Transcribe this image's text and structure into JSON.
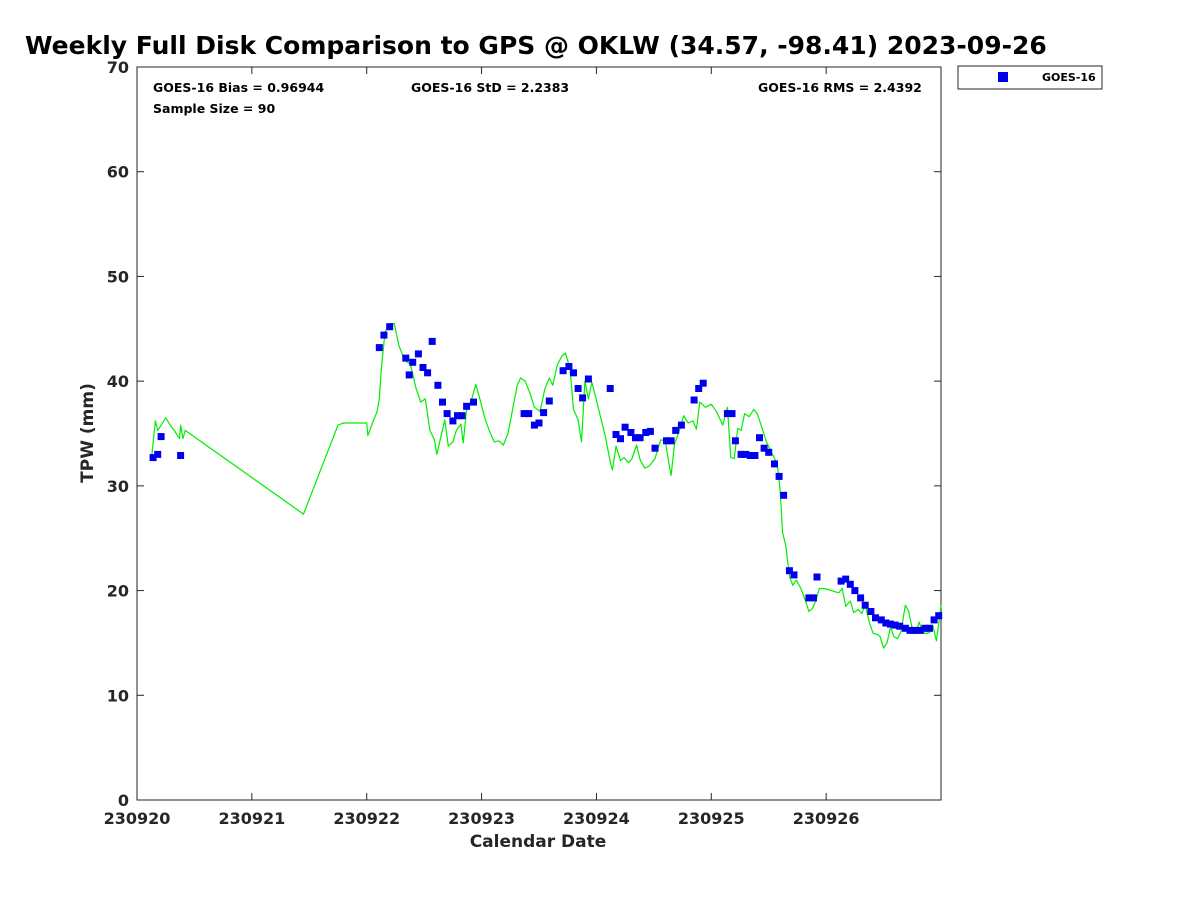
{
  "chart_data": {
    "type": "scatter",
    "title": "Weekly Full Disk Comparison to GPS @ OKLW (34.57, -98.41) 2023-09-26",
    "xlabel": "Calendar Date",
    "ylabel": "TPW (mm)",
    "xlim": [
      0,
      7
    ],
    "ylim": [
      0,
      70
    ],
    "x_ticks": [
      0,
      1,
      2,
      3,
      4,
      5,
      6
    ],
    "x_tick_labels": [
      "230920",
      "230921",
      "230922",
      "230923",
      "230924",
      "230925",
      "230926"
    ],
    "y_ticks": [
      0,
      10,
      20,
      30,
      40,
      50,
      60,
      70
    ],
    "y_tick_labels": [
      "0",
      "10",
      "20",
      "30",
      "40",
      "50",
      "60",
      "70"
    ],
    "x_unit": "days since 230920",
    "grid": false,
    "legend_placement": "top-right-outside",
    "stats": {
      "bias": "GOES-16 Bias = 0.96944",
      "std": "GOES-16 StD = 2.2383",
      "rms": "GOES-16 RMS = 2.4392",
      "sample": "Sample Size = 90"
    },
    "series": [
      {
        "name": "GOES-16",
        "kind": "scatter",
        "color": "#0000ee",
        "marker": "square",
        "points": [
          [
            0.14,
            32.7
          ],
          [
            0.18,
            33.0
          ],
          [
            0.21,
            34.7
          ],
          [
            0.38,
            32.9
          ],
          [
            2.11,
            43.2
          ],
          [
            2.15,
            44.4
          ],
          [
            2.2,
            45.2
          ],
          [
            2.34,
            42.2
          ],
          [
            2.37,
            40.6
          ],
          [
            2.4,
            41.8
          ],
          [
            2.45,
            42.6
          ],
          [
            2.49,
            41.3
          ],
          [
            2.53,
            40.8
          ],
          [
            2.57,
            43.8
          ],
          [
            2.62,
            39.6
          ],
          [
            2.66,
            38.0
          ],
          [
            2.7,
            36.9
          ],
          [
            2.75,
            36.2
          ],
          [
            2.79,
            36.7
          ],
          [
            2.83,
            36.7
          ],
          [
            2.87,
            37.6
          ],
          [
            2.93,
            38.0
          ],
          [
            3.37,
            36.9
          ],
          [
            3.41,
            36.9
          ],
          [
            3.46,
            35.8
          ],
          [
            3.5,
            36.0
          ],
          [
            3.54,
            37.0
          ],
          [
            3.59,
            38.1
          ],
          [
            3.71,
            41.0
          ],
          [
            3.76,
            41.4
          ],
          [
            3.8,
            40.8
          ],
          [
            3.84,
            39.3
          ],
          [
            3.88,
            38.4
          ],
          [
            3.93,
            40.2
          ],
          [
            4.12,
            39.3
          ],
          [
            4.17,
            34.9
          ],
          [
            4.21,
            34.5
          ],
          [
            4.25,
            35.6
          ],
          [
            4.3,
            35.1
          ],
          [
            4.34,
            34.6
          ],
          [
            4.38,
            34.6
          ],
          [
            4.43,
            35.1
          ],
          [
            4.47,
            35.2
          ],
          [
            4.51,
            33.6
          ],
          [
            4.61,
            34.3
          ],
          [
            4.65,
            34.3
          ],
          [
            4.69,
            35.3
          ],
          [
            4.74,
            35.8
          ],
          [
            4.85,
            38.2
          ],
          [
            4.89,
            39.3
          ],
          [
            4.93,
            39.8
          ],
          [
            5.14,
            36.9
          ],
          [
            5.18,
            36.9
          ],
          [
            5.21,
            34.3
          ],
          [
            5.26,
            33.0
          ],
          [
            5.3,
            33.0
          ],
          [
            5.34,
            32.9
          ],
          [
            5.38,
            32.9
          ],
          [
            5.42,
            34.6
          ],
          [
            5.46,
            33.6
          ],
          [
            5.5,
            33.2
          ],
          [
            5.55,
            32.1
          ],
          [
            5.59,
            30.9
          ],
          [
            5.63,
            29.1
          ],
          [
            5.68,
            21.9
          ],
          [
            5.72,
            21.5
          ],
          [
            5.85,
            19.3
          ],
          [
            5.89,
            19.3
          ],
          [
            5.92,
            21.3
          ],
          [
            6.13,
            20.9
          ],
          [
            6.17,
            21.1
          ],
          [
            6.21,
            20.6
          ],
          [
            6.25,
            20.0
          ],
          [
            6.3,
            19.3
          ],
          [
            6.34,
            18.6
          ],
          [
            6.39,
            18.0
          ],
          [
            6.43,
            17.4
          ],
          [
            6.48,
            17.2
          ],
          [
            6.52,
            16.9
          ],
          [
            6.56,
            16.8
          ],
          [
            6.6,
            16.7
          ],
          [
            6.64,
            16.6
          ],
          [
            6.69,
            16.4
          ],
          [
            6.73,
            16.2
          ],
          [
            6.77,
            16.2
          ],
          [
            6.82,
            16.2
          ],
          [
            6.86,
            16.4
          ],
          [
            6.9,
            16.4
          ],
          [
            6.94,
            17.2
          ],
          [
            6.98,
            17.6
          ]
        ]
      },
      {
        "name": "",
        "kind": "line",
        "color": "#00ee00",
        "points": [
          [
            0.13,
            33.0
          ],
          [
            0.16,
            36.2
          ],
          [
            0.18,
            35.3
          ],
          [
            0.21,
            35.8
          ],
          [
            0.25,
            36.5
          ],
          [
            0.29,
            35.8
          ],
          [
            0.33,
            35.2
          ],
          [
            0.37,
            34.5
          ],
          [
            0.38,
            35.8
          ],
          [
            0.4,
            34.5
          ],
          [
            0.42,
            35.3
          ],
          [
            1.45,
            27.3
          ],
          [
            1.75,
            35.8
          ],
          [
            1.8,
            36.0
          ],
          [
            2.0,
            36.0
          ],
          [
            2.01,
            34.8
          ],
          [
            2.05,
            36.0
          ],
          [
            2.09,
            37.1
          ],
          [
            2.11,
            38.3
          ],
          [
            2.13,
            41.5
          ],
          [
            2.16,
            44.7
          ],
          [
            2.2,
            45.5
          ],
          [
            2.24,
            45.5
          ],
          [
            2.28,
            43.4
          ],
          [
            2.33,
            42.0
          ],
          [
            2.38,
            41.6
          ],
          [
            2.43,
            39.3
          ],
          [
            2.47,
            38.0
          ],
          [
            2.51,
            38.3
          ],
          [
            2.55,
            35.3
          ],
          [
            2.59,
            34.4
          ],
          [
            2.61,
            33.0
          ],
          [
            2.65,
            34.9
          ],
          [
            2.68,
            36.3
          ],
          [
            2.71,
            33.8
          ],
          [
            2.75,
            34.2
          ],
          [
            2.78,
            35.3
          ],
          [
            2.82,
            35.9
          ],
          [
            2.84,
            34.1
          ],
          [
            2.87,
            37.3
          ],
          [
            2.91,
            38.1
          ],
          [
            2.95,
            39.7
          ],
          [
            2.98,
            38.5
          ],
          [
            3.03,
            36.4
          ],
          [
            3.07,
            35.2
          ],
          [
            3.11,
            34.2
          ],
          [
            3.15,
            34.3
          ],
          [
            3.19,
            33.9
          ],
          [
            3.23,
            35.0
          ],
          [
            3.27,
            37.3
          ],
          [
            3.31,
            39.6
          ],
          [
            3.34,
            40.3
          ],
          [
            3.38,
            40.0
          ],
          [
            3.42,
            38.9
          ],
          [
            3.46,
            37.5
          ],
          [
            3.51,
            37.1
          ],
          [
            3.55,
            39.2
          ],
          [
            3.59,
            40.3
          ],
          [
            3.62,
            39.6
          ],
          [
            3.66,
            41.6
          ],
          [
            3.7,
            42.4
          ],
          [
            3.73,
            42.7
          ],
          [
            3.77,
            41.2
          ],
          [
            3.8,
            37.3
          ],
          [
            3.84,
            36.3
          ],
          [
            3.87,
            34.2
          ],
          [
            3.9,
            40.0
          ],
          [
            3.93,
            38.3
          ],
          [
            3.96,
            39.9
          ],
          [
            4.0,
            38.2
          ],
          [
            4.04,
            36.4
          ],
          [
            4.08,
            34.6
          ],
          [
            4.12,
            32.3
          ],
          [
            4.14,
            31.5
          ],
          [
            4.17,
            33.8
          ],
          [
            4.21,
            32.4
          ],
          [
            4.24,
            32.7
          ],
          [
            4.28,
            32.2
          ],
          [
            4.31,
            32.6
          ],
          [
            4.35,
            33.9
          ],
          [
            4.38,
            32.5
          ],
          [
            4.42,
            31.7
          ],
          [
            4.46,
            31.9
          ],
          [
            4.51,
            32.6
          ],
          [
            4.56,
            34.4
          ],
          [
            4.6,
            34.3
          ],
          [
            4.63,
            32.2
          ],
          [
            4.65,
            31.0
          ],
          [
            4.68,
            34.0
          ],
          [
            4.72,
            35.2
          ],
          [
            4.76,
            36.7
          ],
          [
            4.8,
            36.0
          ],
          [
            4.84,
            36.2
          ],
          [
            4.87,
            35.4
          ],
          [
            4.9,
            38.0
          ],
          [
            4.95,
            37.5
          ],
          [
            5.0,
            37.8
          ],
          [
            5.05,
            37.0
          ],
          [
            5.1,
            35.8
          ],
          [
            5.14,
            37.5
          ],
          [
            5.17,
            32.7
          ],
          [
            5.2,
            32.6
          ],
          [
            5.23,
            35.5
          ],
          [
            5.26,
            35.3
          ],
          [
            5.29,
            36.9
          ],
          [
            5.33,
            36.6
          ],
          [
            5.37,
            37.3
          ],
          [
            5.4,
            36.9
          ],
          [
            5.44,
            35.6
          ],
          [
            5.48,
            34.2
          ],
          [
            5.52,
            33.3
          ],
          [
            5.56,
            32.4
          ],
          [
            5.58,
            31.6
          ],
          [
            5.6,
            29.5
          ],
          [
            5.62,
            25.6
          ],
          [
            5.65,
            24.2
          ],
          [
            5.68,
            21.4
          ],
          [
            5.71,
            20.5
          ],
          [
            5.74,
            21.0
          ],
          [
            5.78,
            20.2
          ],
          [
            5.82,
            19.0
          ],
          [
            5.85,
            18.0
          ],
          [
            5.88,
            18.3
          ],
          [
            5.91,
            19.0
          ],
          [
            5.94,
            20.2
          ],
          [
            5.98,
            20.2
          ],
          [
            6.02,
            20.1
          ],
          [
            6.07,
            19.9
          ],
          [
            6.11,
            19.8
          ],
          [
            6.14,
            20.2
          ],
          [
            6.17,
            18.5
          ],
          [
            6.21,
            19.0
          ],
          [
            6.24,
            17.9
          ],
          [
            6.28,
            18.2
          ],
          [
            6.31,
            17.8
          ],
          [
            6.34,
            18.6
          ],
          [
            6.38,
            16.8
          ],
          [
            6.41,
            15.9
          ],
          [
            6.45,
            15.8
          ],
          [
            6.47,
            15.6
          ],
          [
            6.5,
            14.5
          ],
          [
            6.53,
            15.0
          ],
          [
            6.56,
            16.5
          ],
          [
            6.59,
            15.6
          ],
          [
            6.62,
            15.4
          ],
          [
            6.65,
            16.0
          ],
          [
            6.69,
            18.6
          ],
          [
            6.72,
            18.0
          ],
          [
            6.75,
            16.3
          ],
          [
            6.78,
            15.9
          ],
          [
            6.81,
            17.0
          ],
          [
            6.84,
            16.0
          ],
          [
            6.87,
            15.9
          ],
          [
            6.9,
            16.0
          ],
          [
            6.93,
            16.6
          ],
          [
            6.96,
            15.2
          ],
          [
            6.98,
            16.8
          ],
          [
            7.0,
            18.6
          ]
        ]
      }
    ]
  }
}
